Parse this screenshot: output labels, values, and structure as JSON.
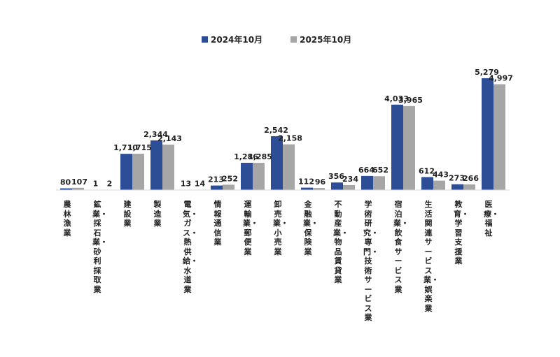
{
  "chart_data": {
    "type": "bar",
    "categories": [
      "農林漁業",
      "鉱業・採石業・砂利採取業",
      "建設業",
      "製造業",
      "電気・ガス・熱供給・水道業",
      "情報通信業",
      "運輸業・郵便業",
      "卸売業・小売業",
      "金融業・保険業",
      "不動産業・物品賃貸業",
      "学術研究・専門・技術サービス業",
      "宿泊業・飲食サービス業",
      "生活関連サービス業・娯楽業",
      "教育・学習支援業",
      "医療・福祉"
    ],
    "series": [
      {
        "name": "2024年10月",
        "values": [
          80,
          1,
          1710,
          2344,
          13,
          213,
          1286,
          2542,
          112,
          356,
          664,
          4033,
          612,
          273,
          5279
        ],
        "labels": [
          "80",
          "1",
          "1,710",
          "2,344",
          "13",
          "213",
          "1,286",
          "2,542",
          "112",
          "356",
          "664",
          "4,033",
          "612",
          "273",
          "5,279"
        ]
      },
      {
        "name": "2025年10月",
        "values": [
          107,
          2,
          1715,
          2143,
          14,
          252,
          1285,
          2158,
          96,
          234,
          652,
          3965,
          443,
          266,
          4997
        ],
        "labels": [
          "107",
          "2",
          "1,715",
          "2,143",
          "14",
          "252",
          "1,285",
          "2,158",
          "96",
          "234",
          "652",
          "3,965",
          "443",
          "266",
          "4,997"
        ]
      }
    ],
    "colors": [
      "#2e4d97",
      "#a6a6a6"
    ],
    "ylim": [
      0,
      5500
    ],
    "grid": false,
    "legend": "top-center"
  }
}
